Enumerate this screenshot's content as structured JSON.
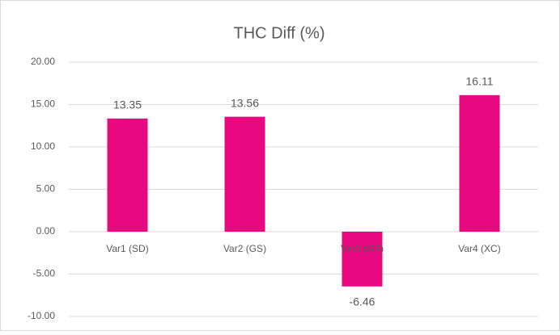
{
  "chart_data": {
    "type": "bar",
    "title": "THC Diff (%)",
    "categories": [
      "Var1 (SD)",
      "Var2 (GS)",
      "Var3 (GS)",
      "Var4 (XC)"
    ],
    "values": [
      13.35,
      13.56,
      -6.46,
      16.11
    ],
    "color": "#e8087f",
    "ylim": [
      -10,
      20
    ],
    "yticks": [
      {
        "value": -10,
        "label": "-10.00"
      },
      {
        "value": -5,
        "label": "-5.00"
      },
      {
        "value": 0,
        "label": "0.00"
      },
      {
        "value": 5,
        "label": "5.00"
      },
      {
        "value": 10,
        "label": "10.00"
      },
      {
        "value": 15,
        "label": "15.00"
      },
      {
        "value": 20,
        "label": "20.00"
      }
    ],
    "grid": true
  }
}
